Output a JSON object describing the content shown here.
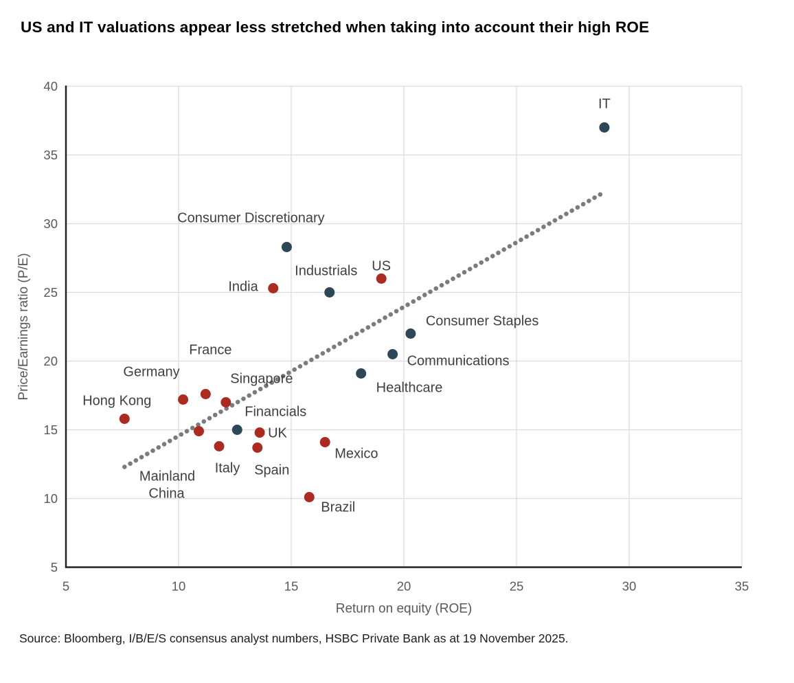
{
  "page": {
    "title": "US and IT valuations appear less stretched when taking into account their high ROE",
    "source": "Source: Bloomberg, I/B/E/S consensus analyst numbers, HSBC Private Bank as at 19 November 2025."
  },
  "colors": {
    "sector_point": "#2e4757",
    "country_point": "#ab2a22",
    "trend_line": "#7b7b7b",
    "gridline": "#dcdcdc",
    "axis_spine": "#212121",
    "tick_text": "#595959",
    "point_label_text": "#3f3f3f",
    "title_text": "#000000",
    "source_text": "#1c1c1c"
  },
  "chart_data": {
    "type": "scatter",
    "title": "US and IT valuations appear less stretched when taking into account their high ROE",
    "xlabel": "Return on equity (ROE)",
    "ylabel": "Price/Earnings ratio (P/E)",
    "xlim": [
      5,
      35
    ],
    "ylim": [
      5,
      40
    ],
    "xticks": [
      5,
      10,
      15,
      20,
      25,
      30,
      35
    ],
    "yticks": [
      5,
      10,
      15,
      20,
      25,
      30,
      35,
      40
    ],
    "grid": true,
    "legend": "none",
    "trendline": {
      "style": "dotted",
      "from": {
        "x": 7.6,
        "y": 12.3
      },
      "to": {
        "x": 28.9,
        "y": 32.3
      }
    },
    "series": [
      {
        "name": "Sectors",
        "color_key": "sector_point",
        "points": [
          {
            "label": "IT",
            "x": 28.9,
            "y": 37.0,
            "annotations": [
              {
                "text": "IT",
                "dx": 0,
                "dy": -28,
                "anchor": "middle"
              }
            ]
          },
          {
            "label": "Consumer Discretionary",
            "x": 14.8,
            "y": 28.3,
            "annotations": [
              {
                "text": "Consumer Discretionary",
                "dx": -52,
                "dy": -36,
                "anchor": "middle"
              }
            ]
          },
          {
            "label": "Industrials",
            "x": 16.7,
            "y": 25.0,
            "annotations": [
              {
                "text": "Industrials",
                "dx": -5,
                "dy": -25,
                "anchor": "middle"
              }
            ]
          },
          {
            "label": "Consumer Staples",
            "x": 20.3,
            "y": 22.0,
            "annotations": [
              {
                "text": "Consumer Staples",
                "dx": 22,
                "dy": -12,
                "anchor": "start"
              }
            ]
          },
          {
            "label": "Communications",
            "x": 19.5,
            "y": 20.5,
            "annotations": [
              {
                "text": "Communications",
                "dx": 21,
                "dy": 16,
                "anchor": "start"
              }
            ]
          },
          {
            "label": "Healthcare",
            "x": 18.1,
            "y": 19.1,
            "annotations": [
              {
                "text": "Healthcare",
                "dx": 22,
                "dy": 27,
                "anchor": "start"
              }
            ]
          },
          {
            "label": "Financials",
            "x": 12.6,
            "y": 15.0,
            "annotations": [
              {
                "text": "Financials",
                "dx": 11,
                "dy": -20,
                "anchor": "start"
              }
            ]
          }
        ]
      },
      {
        "name": "Countries/Regions",
        "color_key": "country_point",
        "points": [
          {
            "label": "US",
            "x": 19.0,
            "y": 26.0,
            "annotations": [
              {
                "text": "US",
                "dx": 0,
                "dy": -12,
                "anchor": "middle"
              }
            ]
          },
          {
            "label": "India",
            "x": 14.2,
            "y": 25.3,
            "annotations": [
              {
                "text": "India",
                "dx": -22,
                "dy": 4,
                "anchor": "end"
              }
            ]
          },
          {
            "label": "France",
            "x": 11.2,
            "y": 17.6,
            "annotations": [
              {
                "text": "France",
                "dx": 7,
                "dy": -58,
                "anchor": "middle"
              }
            ]
          },
          {
            "label": "Germany",
            "x": 10.2,
            "y": 17.2,
            "annotations": [
              {
                "text": "Germany",
                "dx": -46,
                "dy": -34,
                "anchor": "middle"
              }
            ]
          },
          {
            "label": "Singapore",
            "x": 12.1,
            "y": 17.0,
            "annotations": [
              {
                "text": "Singapore",
                "dx": 52,
                "dy": -28,
                "anchor": "middle"
              }
            ]
          },
          {
            "label": "Hong Kong",
            "x": 7.6,
            "y": 15.8,
            "annotations": [
              {
                "text": "Hong Kong",
                "dx": -11,
                "dy": -20,
                "anchor": "middle"
              }
            ]
          },
          {
            "label": "Mainland China",
            "x": 10.9,
            "y": 14.9,
            "annotations": [
              {
                "text": "Mainland",
                "dx": -46,
                "dy": 72,
                "anchor": "middle"
              },
              {
                "text": "China",
                "dx": -47,
                "dy": 97,
                "anchor": "middle"
              }
            ]
          },
          {
            "label": "UK",
            "x": 13.6,
            "y": 14.8,
            "annotations": [
              {
                "text": "UK",
                "dx": 12,
                "dy": 7,
                "anchor": "start"
              }
            ]
          },
          {
            "label": "Italy",
            "x": 11.8,
            "y": 13.8,
            "annotations": [
              {
                "text": "Italy",
                "dx": 12,
                "dy": 38,
                "anchor": "middle"
              }
            ]
          },
          {
            "label": "Spain",
            "x": 13.5,
            "y": 13.7,
            "annotations": [
              {
                "text": "Spain",
                "dx": 21,
                "dy": 39,
                "anchor": "middle"
              }
            ]
          },
          {
            "label": "Mexico",
            "x": 16.5,
            "y": 14.1,
            "annotations": [
              {
                "text": "Mexico",
                "dx": 14,
                "dy": 23,
                "anchor": "start"
              }
            ]
          },
          {
            "label": "Brazil",
            "x": 15.8,
            "y": 10.1,
            "annotations": [
              {
                "text": "Brazil",
                "dx": 17,
                "dy": 21,
                "anchor": "start"
              }
            ]
          }
        ]
      }
    ]
  }
}
